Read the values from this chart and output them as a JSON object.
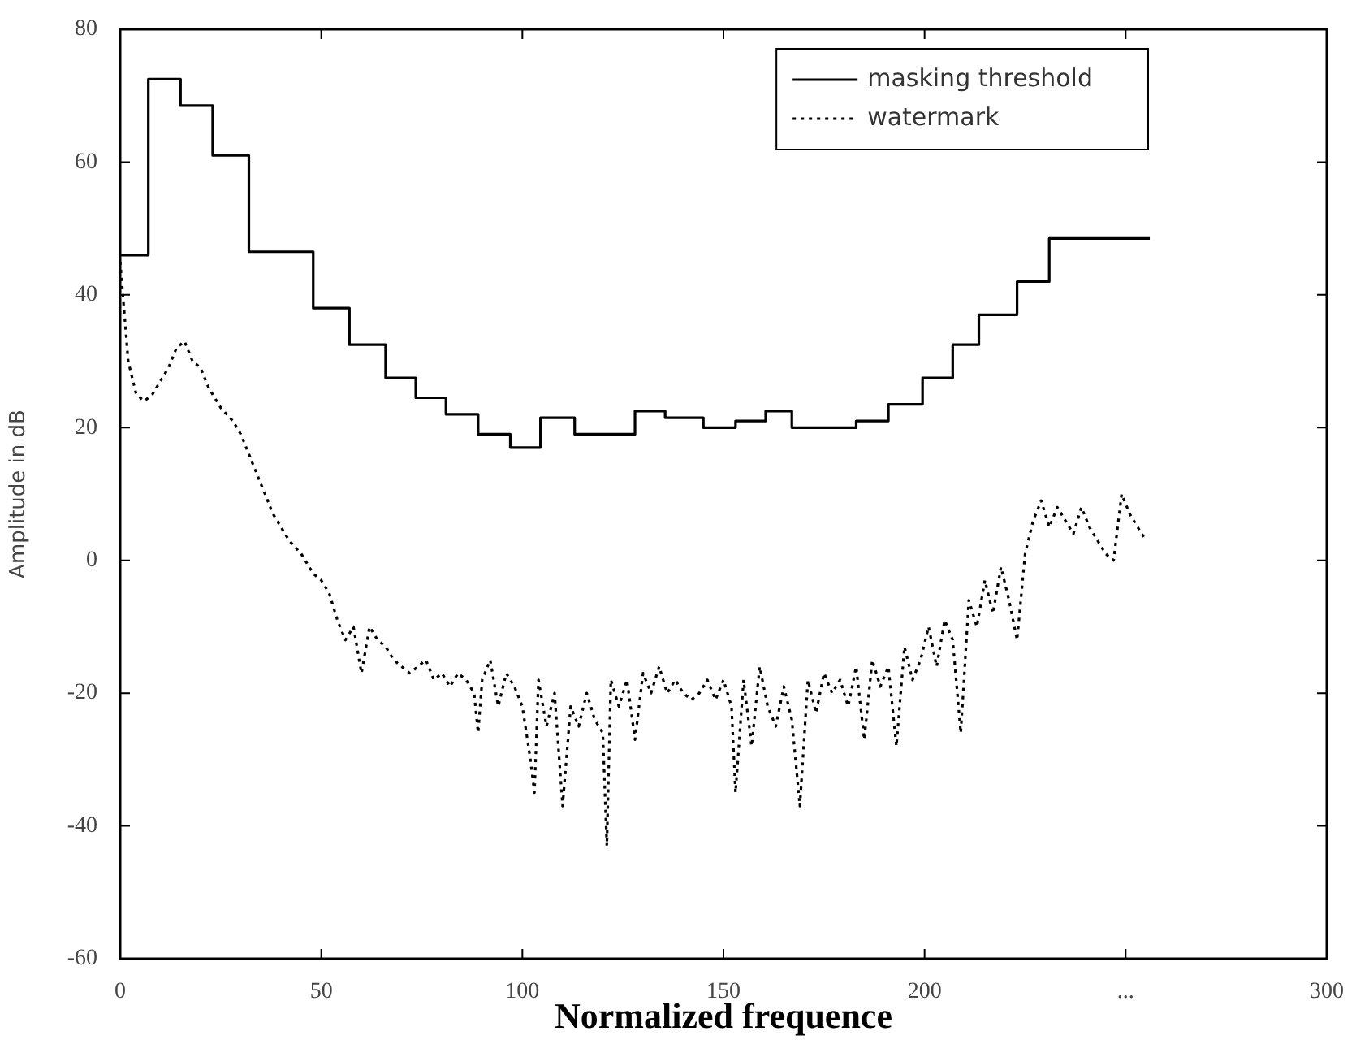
{
  "chart_data": {
    "type": "line",
    "xlabel": "Normalized frequence",
    "ylabel": "Amplitude in dB",
    "xlim": [
      0,
      300
    ],
    "xticks": [
      0,
      50,
      100,
      150,
      200,
      {
        "value": 250,
        "label": "..."
      },
      300
    ],
    "ylim": [
      -60,
      80
    ],
    "yticks": [
      -60,
      -40,
      -20,
      0,
      20,
      40,
      60,
      80
    ],
    "legend": "top right",
    "grid": false,
    "series": [
      {
        "name": "masking threshold",
        "type": "step",
        "color": "#000000",
        "line_style": "solid",
        "x": [
          0,
          7,
          15,
          23,
          32,
          48,
          57,
          66,
          73.5,
          81,
          89,
          97,
          104.5,
          113,
          128,
          135.5,
          145,
          153,
          160.5,
          167,
          183,
          191,
          199.5,
          207,
          213.5,
          223,
          231,
          256
        ],
        "values": [
          46,
          72.5,
          68.5,
          61,
          46.5,
          38,
          32.5,
          27.5,
          24.5,
          22,
          19,
          17,
          21.5,
          19,
          22.5,
          21.5,
          20,
          21,
          22.5,
          20,
          21,
          23.5,
          27.5,
          32.5,
          37,
          42,
          48.5,
          48.5
        ]
      },
      {
        "name": "watermark",
        "type": "line",
        "color": "#000000",
        "line_style": "dotted",
        "x": [
          0,
          2,
          4,
          6,
          8,
          10,
          12,
          14,
          16,
          18,
          20,
          22,
          25,
          28,
          30,
          32,
          34,
          36,
          38,
          40,
          42,
          45,
          48,
          50,
          52,
          54,
          56,
          58,
          60,
          62,
          64,
          66,
          68,
          70,
          72,
          74,
          76,
          78,
          80,
          82,
          84,
          86,
          88,
          89,
          90,
          92,
          94,
          96,
          98,
          100,
          102,
          103,
          104,
          106,
          108,
          110,
          112,
          114,
          116,
          118,
          120,
          121,
          122,
          124,
          126,
          128,
          130,
          132,
          134,
          136,
          138,
          140,
          142,
          144,
          146,
          148,
          150,
          152,
          153,
          155,
          157,
          159,
          161,
          163,
          165,
          167,
          169,
          171,
          173,
          175,
          177,
          179,
          181,
          183,
          185,
          187,
          189,
          191,
          193,
          195,
          197,
          199,
          201,
          203,
          205,
          207,
          209,
          211,
          213,
          215,
          217,
          219,
          221,
          223,
          225,
          227,
          229,
          231,
          233,
          235,
          237,
          239,
          241,
          243,
          245,
          247,
          249,
          251,
          253,
          255
        ],
        "values": [
          45,
          30,
          25,
          24,
          25,
          27,
          29,
          32,
          33,
          30,
          29,
          26,
          23,
          21,
          19,
          16,
          13,
          10,
          7,
          5,
          3,
          1,
          -2,
          -3,
          -5,
          -9,
          -12,
          -10,
          -17,
          -10,
          -12,
          -13,
          -15,
          -16,
          -17,
          -16,
          -15,
          -18,
          -17,
          -19,
          -17,
          -18,
          -20,
          -26,
          -18,
          -15,
          -22,
          -17,
          -19,
          -22,
          -30,
          -35,
          -18,
          -25,
          -20,
          -37,
          -22,
          -25,
          -20,
          -24,
          -26,
          -43,
          -18,
          -22,
          -18,
          -27,
          -17,
          -20,
          -16,
          -20,
          -18,
          -20,
          -21,
          -20,
          -18,
          -21,
          -18,
          -22,
          -35,
          -18,
          -28,
          -16,
          -22,
          -25,
          -19,
          -24,
          -37,
          -18,
          -23,
          -17,
          -20,
          -18,
          -22,
          -16,
          -27,
          -15,
          -19,
          -16,
          -28,
          -13,
          -18,
          -15,
          -10,
          -16,
          -9,
          -12,
          -26,
          -6,
          -10,
          -3,
          -8,
          -1,
          -6,
          -12,
          1,
          6,
          9,
          5,
          8,
          6,
          4,
          8,
          5,
          3,
          1,
          0,
          10,
          7,
          5,
          3
        ]
      }
    ]
  }
}
